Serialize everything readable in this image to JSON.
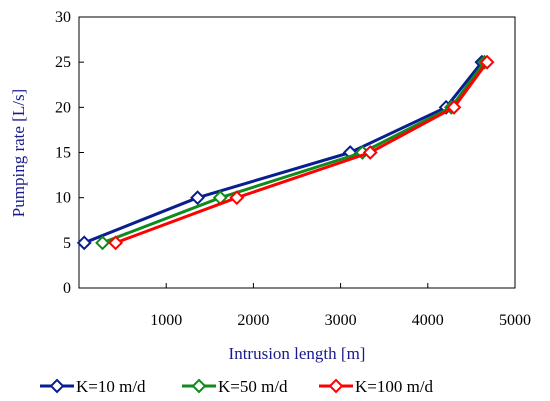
{
  "chart_data": {
    "type": "line",
    "title": "",
    "xlabel": "Intrusion length [m]",
    "ylabel": "Pumping rate [L/s]",
    "xlim": [
      0,
      5000
    ],
    "ylim": [
      0,
      30
    ],
    "x_ticks": [
      "1000",
      "2000",
      "3000",
      "4000",
      "5000"
    ],
    "y_ticks": [
      "0",
      "5",
      "10",
      "15",
      "20",
      "25",
      "30"
    ],
    "grid": false,
    "legend_position": "bottom",
    "marker": "open-diamond",
    "series": [
      {
        "name": "K=10 m/d",
        "color": "#0a1f8f",
        "points": [
          [
            60,
            5
          ],
          [
            1360,
            10
          ],
          [
            3110,
            15
          ],
          [
            4210,
            20
          ],
          [
            4620,
            25
          ]
        ]
      },
      {
        "name": "K=50 m/d",
        "color": "#0f8a1c",
        "points": [
          [
            270,
            5
          ],
          [
            1620,
            10
          ],
          [
            3250,
            15
          ],
          [
            4270,
            20
          ],
          [
            4650,
            25
          ]
        ]
      },
      {
        "name": "K=100 m/d",
        "color": "#ff0000",
        "points": [
          [
            420,
            5
          ],
          [
            1810,
            10
          ],
          [
            3340,
            15
          ],
          [
            4300,
            20
          ],
          [
            4680,
            25
          ]
        ]
      }
    ],
    "axis_title_color": "#1a1a8c"
  }
}
